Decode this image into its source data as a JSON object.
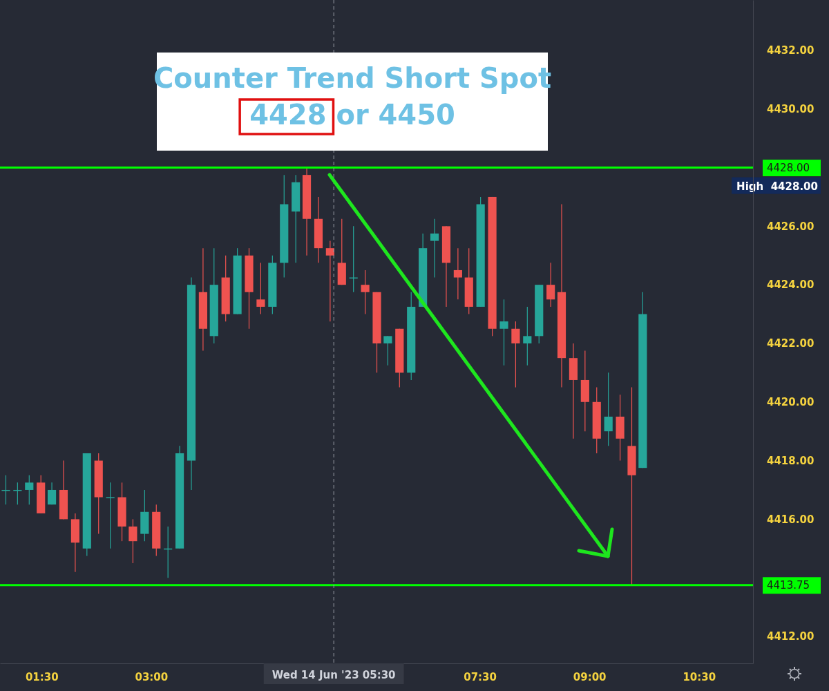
{
  "chart_data": {
    "type": "candlestick",
    "annotations": [
      "Counter Trend Short Spot",
      "4428 or 4450"
    ],
    "x": [
      1.01,
      1.17,
      1.33,
      1.49,
      1.64,
      1.8,
      1.96,
      2.12,
      2.28,
      2.44,
      2.6,
      2.75,
      2.91,
      3.07,
      3.23,
      3.39,
      3.55,
      3.71,
      3.86,
      4.02,
      4.18,
      4.34,
      4.5,
      4.66,
      4.82,
      4.98,
      5.13,
      5.29,
      5.45,
      5.61,
      5.77,
      5.93,
      6.09,
      6.24,
      6.4,
      6.56,
      6.72,
      6.88,
      7.04,
      7.2,
      7.35,
      7.51,
      7.67,
      7.83,
      7.99,
      8.15,
      8.31,
      8.47,
      8.62,
      8.78,
      8.94,
      9.1,
      9.26,
      9.42,
      9.58,
      9.73
    ],
    "ohlc": [
      [
        4417,
        4417.5,
        4416.5,
        4417
      ],
      [
        4417,
        4417.25,
        4416.5,
        4417
      ],
      [
        4417,
        4417.5,
        4416.5,
        4417.25
      ],
      [
        4417.25,
        4417.5,
        4416.2,
        4416.2
      ],
      [
        4416.5,
        4417.25,
        4416.5,
        4417
      ],
      [
        4417,
        4418,
        4416,
        4416
      ],
      [
        4416,
        4416.2,
        4414.2,
        4415.2
      ],
      [
        4415,
        4418.25,
        4414.75,
        4418.25
      ],
      [
        4418,
        4418.25,
        4415.5,
        4416.75
      ],
      [
        4416.75,
        4417.25,
        4415,
        4416.75
      ],
      [
        4416.75,
        4417.25,
        4415.25,
        4415.75
      ],
      [
        4415.75,
        4416,
        4414.5,
        4415.25
      ],
      [
        4415.5,
        4417,
        4415.25,
        4416.25
      ],
      [
        4416.25,
        4416.5,
        4414.75,
        4415
      ],
      [
        4415,
        4415.75,
        4414,
        4415
      ],
      [
        4415,
        4418.5,
        4415,
        4418.25
      ],
      [
        4418,
        4424.25,
        4417,
        4424
      ],
      [
        4423.75,
        4425.25,
        4421.75,
        4422.5
      ],
      [
        4422.25,
        4425.25,
        4422,
        4424
      ],
      [
        4424.25,
        4425,
        4422.75,
        4423
      ],
      [
        4423,
        4425.25,
        4423,
        4425
      ],
      [
        4425,
        4425.25,
        4422.5,
        4423.75
      ],
      [
        4423.5,
        4424.75,
        4423,
        4423.25
      ],
      [
        4423.25,
        4425,
        4423,
        4424.75
      ],
      [
        4424.75,
        4427.75,
        4424.25,
        4426.75
      ],
      [
        4426.5,
        4427.75,
        4424.75,
        4427.5
      ],
      [
        4427.75,
        4428,
        4425,
        4426.25
      ],
      [
        4426.25,
        4427,
        4424.75,
        4425.25
      ],
      [
        4425.25,
        4425.5,
        4422.75,
        4425
      ],
      [
        4424.75,
        4426.25,
        4424,
        4424
      ],
      [
        4424.25,
        4426,
        4423.75,
        4424.25
      ],
      [
        4424,
        4424.5,
        4423,
        4423.75
      ],
      [
        4423.75,
        4423.75,
        4421,
        4422
      ],
      [
        4422,
        4422.25,
        4421.25,
        4422.25
      ],
      [
        4422.5,
        4422.5,
        4420.5,
        4421
      ],
      [
        4421,
        4423.75,
        4420.75,
        4423.25
      ],
      [
        4423.25,
        4425.75,
        4423.25,
        4425.25
      ],
      [
        4425.5,
        4426.25,
        4424.25,
        4425.75
      ],
      [
        4426,
        4426,
        4423.25,
        4424.75
      ],
      [
        4424.5,
        4425.25,
        4423.5,
        4424.25
      ],
      [
        4424.25,
        4425.25,
        4423,
        4423.25
      ],
      [
        4423.25,
        4427,
        4423.25,
        4426.75
      ],
      [
        4427,
        4427,
        4422.25,
        4422.5
      ],
      [
        4422.5,
        4423.5,
        4421.25,
        4422.75
      ],
      [
        4422.5,
        4422.75,
        4420.5,
        4422
      ],
      [
        4422,
        4423.25,
        4421.25,
        4422.25
      ],
      [
        4422.25,
        4424,
        4422,
        4424
      ],
      [
        4424,
        4424.75,
        4423.25,
        4423.5
      ],
      [
        4423.75,
        4426.75,
        4420.5,
        4421.5
      ],
      [
        4421.5,
        4422,
        4418.75,
        4420.75
      ],
      [
        4420.75,
        4421.75,
        4419,
        4420
      ],
      [
        4420,
        4420.5,
        4418.25,
        4418.75
      ],
      [
        4419,
        4421,
        4418.5,
        4419.5
      ],
      [
        4419.5,
        4420.25,
        4418,
        4418.75
      ],
      [
        4418.5,
        4420.5,
        4413.75,
        4417.5
      ],
      [
        4417.75,
        4423.75,
        4417.75,
        4423
      ]
    ],
    "xlim": [
      0.93,
      11.24
    ],
    "xticks": [
      {
        "value": 1.5,
        "label": "01:30"
      },
      {
        "value": 3,
        "label": "03:00"
      },
      {
        "value": 7.5,
        "label": "07:30"
      },
      {
        "value": 9,
        "label": "09:00"
      },
      {
        "value": 10.5,
        "label": "10:30"
      }
    ],
    "ylim": [
      4411.08,
      4433.72
    ],
    "yticks": [
      {
        "value": 4412,
        "label": "4412.00"
      },
      {
        "value": 4416,
        "label": "4416.00"
      },
      {
        "value": 4418,
        "label": "4418.00"
      },
      {
        "value": 4420,
        "label": "4420.00"
      },
      {
        "value": 4422,
        "label": "4422.00"
      },
      {
        "value": 4424,
        "label": "4424.00"
      },
      {
        "value": 4426,
        "label": "4426.00"
      },
      {
        "value": 4428,
        "label": "4428.00"
      },
      {
        "value": 4413.75,
        "label": "4413.75"
      },
      {
        "value": 4430,
        "label": "4430.00"
      },
      {
        "value": 4432,
        "label": "4432.00"
      }
    ],
    "ref_lines": [
      {
        "axis": "y",
        "value": 4428,
        "label": "High  4428.00",
        "color": "#00ff00"
      },
      {
        "axis": "y",
        "value": 4413.75,
        "color": "#00ff00"
      },
      {
        "axis": "x",
        "value": 5.5,
        "label": "Wed 14 Jun '23  05:30",
        "color": "#9598a1",
        "line_style": "dashed"
      }
    ]
  }
}
